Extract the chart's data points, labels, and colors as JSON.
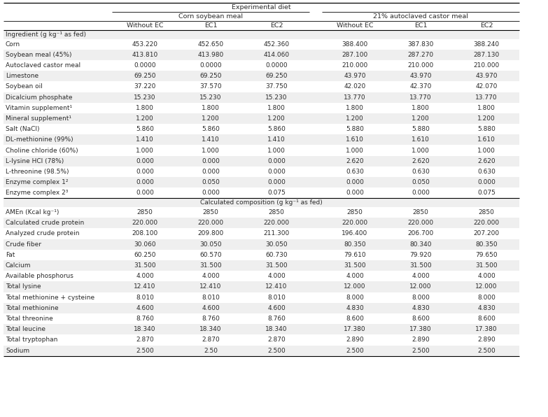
{
  "title_top": "Experimental diet",
  "col_group1": "Corn soybean meal",
  "col_group2": "21% autoclaved castor meal",
  "sub_headers": [
    "Without EC",
    "EC1",
    "EC2",
    "Without EC",
    "EC1",
    "EC2"
  ],
  "section1_header": "Ingredient (g kg⁻¹ as fed)",
  "section2_header": "Calculated composition (g kg⁻¹ as fed)",
  "rows_section1": [
    [
      "Corn",
      "453.220",
      "452.650",
      "452.360",
      "388.400",
      "387.830",
      "388.240"
    ],
    [
      "Soybean meal (45%)",
      "413.810",
      "413.980",
      "414.060",
      "287.100",
      "287.270",
      "287.130"
    ],
    [
      "Autoclaved castor meal",
      "0.0000",
      "0.0000",
      "0.0000",
      "210.000",
      "210.000",
      "210.000"
    ],
    [
      "Limestone",
      "69.250",
      "69.250",
      "69.250",
      "43.970",
      "43.970",
      "43.970"
    ],
    [
      "Soybean oil",
      "37.220",
      "37.570",
      "37.750",
      "42.020",
      "42.370",
      "42.070"
    ],
    [
      "Dicalcium phosphate",
      "15.230",
      "15.230",
      "15.230",
      "13.770",
      "13.770",
      "13.770"
    ],
    [
      "Vitamin supplement¹",
      "1.800",
      "1.800",
      "1.800",
      "1.800",
      "1.800",
      "1.800"
    ],
    [
      "Mineral supplement¹",
      "1.200",
      "1.200",
      "1.200",
      "1.200",
      "1.200",
      "1.200"
    ],
    [
      "Salt (NaCl)",
      "5.860",
      "5.860",
      "5.860",
      "5.880",
      "5.880",
      "5.880"
    ],
    [
      "DL-methionine (99%)",
      "1.410",
      "1.410",
      "1.410",
      "1.610",
      "1.610",
      "1.610"
    ],
    [
      "Choline chloride (60%)",
      "1.000",
      "1.000",
      "1.000",
      "1.000",
      "1.000",
      "1.000"
    ],
    [
      "L-lysine HCl (78%)",
      "0.000",
      "0.000",
      "0.000",
      "2.620",
      "2.620",
      "2.620"
    ],
    [
      "L-threonine (98.5%)",
      "0.000",
      "0.000",
      "0.000",
      "0.630",
      "0.630",
      "0.630"
    ],
    [
      "Enzyme complex 1²",
      "0.000",
      "0.050",
      "0.000",
      "0.000",
      "0.050",
      "0.000"
    ],
    [
      "Enzyme complex 2³",
      "0.000",
      "0.000",
      "0.075",
      "0.000",
      "0.000",
      "0.075"
    ]
  ],
  "rows_section2": [
    [
      "AMEn (Kcal kg⁻¹)",
      "2850",
      "2850",
      "2850",
      "2850",
      "2850",
      "2850"
    ],
    [
      "Calculated crude protein",
      "220.000",
      "220.000",
      "220.000",
      "220.000",
      "220.000",
      "220.000"
    ],
    [
      "Analyzed crude protein",
      "208.100",
      "209.800",
      "211.300",
      "196.400",
      "206.700",
      "207.200"
    ],
    [
      "Crude fiber",
      "30.060",
      "30.050",
      "30.050",
      "80.350",
      "80.340",
      "80.350"
    ],
    [
      "Fat",
      "60.250",
      "60.570",
      "60.730",
      "79.610",
      "79.920",
      "79.650"
    ],
    [
      "Calcium",
      "31.500",
      "31.500",
      "31.500",
      "31.500",
      "31.500",
      "31.500"
    ],
    [
      "Available phosphorus",
      "4.000",
      "4.000",
      "4.000",
      "4.000",
      "4.000",
      "4.000"
    ],
    [
      "Total lysine",
      "12.410",
      "12.410",
      "12.410",
      "12.000",
      "12.000",
      "12.000"
    ],
    [
      "Total methionine + cysteine",
      "8.010",
      "8.010",
      "8.010",
      "8.000",
      "8.000",
      "8.000"
    ],
    [
      "Total methionine",
      "4.600",
      "4.600",
      "4.600",
      "4.830",
      "4.830",
      "4.830"
    ],
    [
      "Total threonine",
      "8.760",
      "8.760",
      "8.760",
      "8.600",
      "8.600",
      "8.600"
    ],
    [
      "Total leucine",
      "18.340",
      "18.340",
      "18.340",
      "17.380",
      "17.380",
      "17.380"
    ],
    [
      "Total tryptophan",
      "2.870",
      "2.870",
      "2.870",
      "2.890",
      "2.890",
      "2.890"
    ],
    [
      "Sodium",
      "2.500",
      "2.50",
      "2.500",
      "2.500",
      "2.500",
      "2.500"
    ]
  ],
  "bg_color_light": "#efefef",
  "bg_color_white": "#ffffff",
  "text_color": "#2a2a2a",
  "font_size": 6.5,
  "header_font_size": 6.8
}
